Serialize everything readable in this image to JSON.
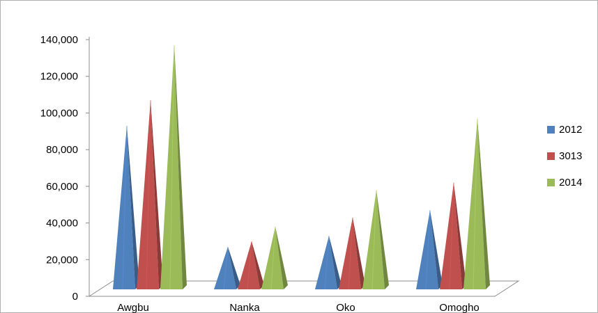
{
  "chart_data": {
    "type": "bar",
    "style": "3d-pyramid",
    "title": "",
    "xlabel": "",
    "ylabel": "",
    "categories": [
      "Awgbu",
      "Nanka",
      "Oko",
      "Omogho"
    ],
    "series": [
      {
        "name": "2012",
        "color": "#4f81bd",
        "values": [
          93000,
          27000,
          33000,
          47000
        ]
      },
      {
        "name": "3013",
        "color": "#c0504d",
        "values": [
          107000,
          30000,
          43000,
          62000
        ]
      },
      {
        "name": "2014",
        "color": "#9bbb59",
        "values": [
          137000,
          38000,
          58000,
          97000
        ]
      }
    ],
    "ylim": [
      0,
      140000
    ],
    "yticks": [
      "0",
      "20,000",
      "40,000",
      "60,000",
      "80,000",
      "100,000",
      "120,000",
      "140,000"
    ],
    "grid": false,
    "legend": "right"
  }
}
